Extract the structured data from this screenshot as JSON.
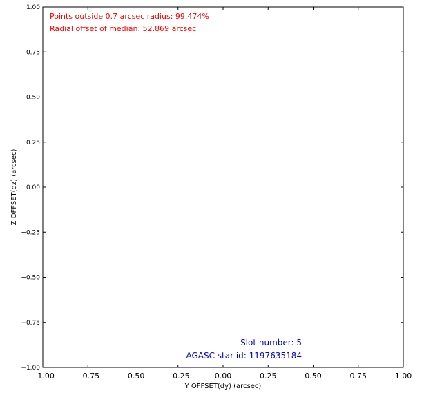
{
  "chart_data": {
    "type": "scatter",
    "title": "",
    "xlabel": "Y OFFSET(dy) (arcsec)",
    "ylabel": "Z OFFSET(dz) (arcsec)",
    "xlim": [
      -1.0,
      1.0
    ],
    "ylim": [
      -1.0,
      1.0
    ],
    "xticks": [
      -1.0,
      -0.75,
      -0.5,
      -0.25,
      0.0,
      0.25,
      0.5,
      0.75,
      1.0
    ],
    "yticks": [
      -1.0,
      -0.75,
      -0.5,
      -0.25,
      0.0,
      0.25,
      0.5,
      0.75,
      1.0
    ],
    "xtick_labels": [
      "−1.00",
      "−0.75",
      "−0.50",
      "−0.25",
      "0.00",
      "0.25",
      "0.50",
      "0.75",
      "1.00"
    ],
    "ytick_labels": [
      "−1.00",
      "−0.75",
      "−0.50",
      "−0.25",
      "0.00",
      "0.25",
      "0.50",
      "0.75",
      "1.00"
    ],
    "grid": false,
    "points": [],
    "annotations": {
      "top_left": [
        "Points outside 0.7 arcsec radius: 99.474%",
        "Radial offset of median: 52.869 arcsec"
      ],
      "bottom_right": [
        "Slot number: 5",
        "AGASC star id: 1197635184"
      ]
    },
    "colors": {
      "top_left_text": "#ff0000",
      "bottom_right_text": "#0000cc",
      "axes": "#000000",
      "background": "#ffffff"
    }
  }
}
